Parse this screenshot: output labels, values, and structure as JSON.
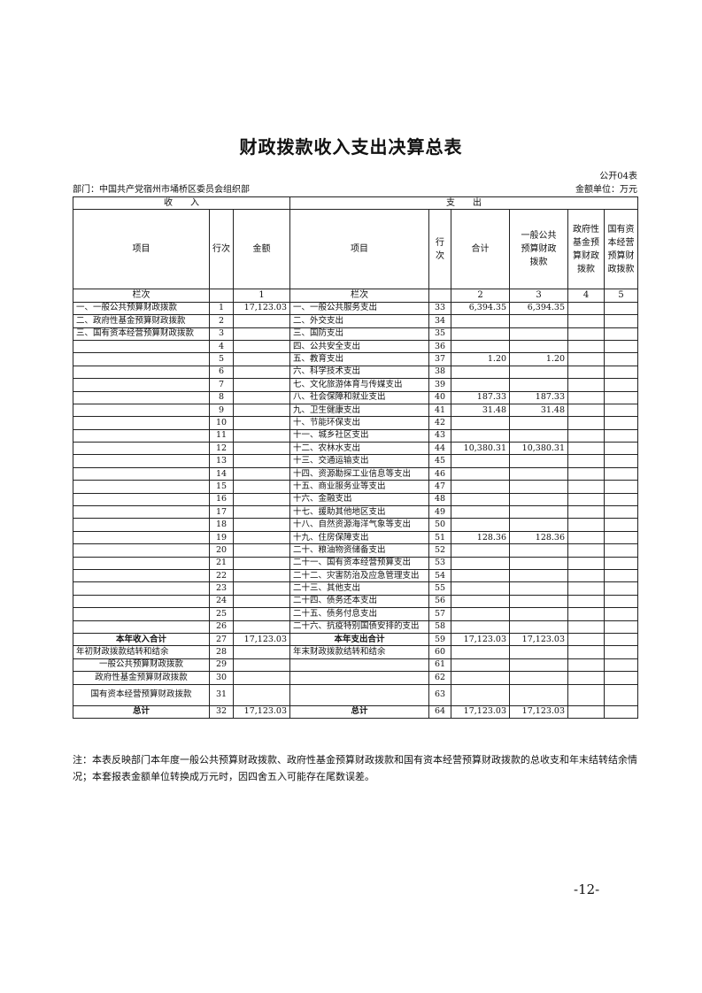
{
  "title": "财政拨款收入支出决算总表",
  "form_no": "公开04表",
  "department": "部门：中国共产党宿州市埇桥区委员会组织部",
  "unit": "金额单位：万元",
  "header": {
    "income": "收　　入",
    "expense": "支　　出",
    "item": "项目",
    "row_no": "行次",
    "amount": "金额",
    "exp_item": "项目",
    "exp_row_no": "行次",
    "total": "合计",
    "general": "一般公共预算财政拨款",
    "gov_fund": "政府性基金预算财政拨款",
    "soe": "国有资本经营预算财政拨款",
    "col_label": "栏次",
    "col_1": "1",
    "exp_col_label": "栏次",
    "col_2": "2",
    "col_3": "3",
    "col_4": "4",
    "col_5": "5"
  },
  "rows": [
    {
      "inc_item": "一、一般公共预算财政拨款",
      "inc_no": "1",
      "inc_amt": "17,123.03",
      "exp_item": "一、一般公共服务支出",
      "exp_no": "33",
      "total": "6,394.35",
      "general": "6,394.35",
      "gov": "",
      "soe": ""
    },
    {
      "inc_item": "二、政府性基金预算财政拨款",
      "inc_no": "2",
      "inc_amt": "",
      "exp_item": "二、外交支出",
      "exp_no": "34",
      "total": "",
      "general": "",
      "gov": "",
      "soe": ""
    },
    {
      "inc_item": "三、国有资本经营预算财政拨款",
      "inc_no": "3",
      "inc_amt": "",
      "exp_item": "三、国防支出",
      "exp_no": "35",
      "total": "",
      "general": "",
      "gov": "",
      "soe": ""
    },
    {
      "inc_item": "",
      "inc_no": "4",
      "inc_amt": "",
      "exp_item": "四、公共安全支出",
      "exp_no": "36",
      "total": "",
      "general": "",
      "gov": "",
      "soe": ""
    },
    {
      "inc_item": "",
      "inc_no": "5",
      "inc_amt": "",
      "exp_item": "五、教育支出",
      "exp_no": "37",
      "total": "1.20",
      "general": "1.20",
      "gov": "",
      "soe": ""
    },
    {
      "inc_item": "",
      "inc_no": "6",
      "inc_amt": "",
      "exp_item": "六、科学技术支出",
      "exp_no": "38",
      "total": "",
      "general": "",
      "gov": "",
      "soe": ""
    },
    {
      "inc_item": "",
      "inc_no": "7",
      "inc_amt": "",
      "exp_item": "七、文化旅游体育与传媒支出",
      "exp_no": "39",
      "total": "",
      "general": "",
      "gov": "",
      "soe": ""
    },
    {
      "inc_item": "",
      "inc_no": "8",
      "inc_amt": "",
      "exp_item": "八、社会保障和就业支出",
      "exp_no": "40",
      "total": "187.33",
      "general": "187.33",
      "gov": "",
      "soe": ""
    },
    {
      "inc_item": "",
      "inc_no": "9",
      "inc_amt": "",
      "exp_item": "九、卫生健康支出",
      "exp_no": "41",
      "total": "31.48",
      "general": "31.48",
      "gov": "",
      "soe": ""
    },
    {
      "inc_item": "",
      "inc_no": "10",
      "inc_amt": "",
      "exp_item": "十、节能环保支出",
      "exp_no": "42",
      "total": "",
      "general": "",
      "gov": "",
      "soe": ""
    },
    {
      "inc_item": "",
      "inc_no": "11",
      "inc_amt": "",
      "exp_item": "十一、城乡社区支出",
      "exp_no": "43",
      "total": "",
      "general": "",
      "gov": "",
      "soe": ""
    },
    {
      "inc_item": "",
      "inc_no": "12",
      "inc_amt": "",
      "exp_item": "十二、农林水支出",
      "exp_no": "44",
      "total": "10,380.31",
      "general": "10,380.31",
      "gov": "",
      "soe": ""
    },
    {
      "inc_item": "",
      "inc_no": "13",
      "inc_amt": "",
      "exp_item": "十三、交通运输支出",
      "exp_no": "45",
      "total": "",
      "general": "",
      "gov": "",
      "soe": ""
    },
    {
      "inc_item": "",
      "inc_no": "14",
      "inc_amt": "",
      "exp_item": "十四、资源勘探工业信息等支出",
      "exp_no": "46",
      "total": "",
      "general": "",
      "gov": "",
      "soe": ""
    },
    {
      "inc_item": "",
      "inc_no": "15",
      "inc_amt": "",
      "exp_item": "十五、商业服务业等支出",
      "exp_no": "47",
      "total": "",
      "general": "",
      "gov": "",
      "soe": ""
    },
    {
      "inc_item": "",
      "inc_no": "16",
      "inc_amt": "",
      "exp_item": "十六、金融支出",
      "exp_no": "48",
      "total": "",
      "general": "",
      "gov": "",
      "soe": ""
    },
    {
      "inc_item": "",
      "inc_no": "17",
      "inc_amt": "",
      "exp_item": "十七、援助其他地区支出",
      "exp_no": "49",
      "total": "",
      "general": "",
      "gov": "",
      "soe": ""
    },
    {
      "inc_item": "",
      "inc_no": "18",
      "inc_amt": "",
      "exp_item": "十八、自然资源海洋气象等支出",
      "exp_no": "50",
      "total": "",
      "general": "",
      "gov": "",
      "soe": ""
    },
    {
      "inc_item": "",
      "inc_no": "19",
      "inc_amt": "",
      "exp_item": "十九、住房保障支出",
      "exp_no": "51",
      "total": "128.36",
      "general": "128.36",
      "gov": "",
      "soe": ""
    },
    {
      "inc_item": "",
      "inc_no": "20",
      "inc_amt": "",
      "exp_item": "二十、粮油物资储备支出",
      "exp_no": "52",
      "total": "",
      "general": "",
      "gov": "",
      "soe": ""
    },
    {
      "inc_item": "",
      "inc_no": "21",
      "inc_amt": "",
      "exp_item": "二十一、国有资本经营预算支出",
      "exp_no": "53",
      "total": "",
      "general": "",
      "gov": "",
      "soe": ""
    },
    {
      "inc_item": "",
      "inc_no": "22",
      "inc_amt": "",
      "exp_item": "二十二、灾害防治及应急管理支出",
      "exp_no": "54",
      "total": "",
      "general": "",
      "gov": "",
      "soe": ""
    },
    {
      "inc_item": "",
      "inc_no": "23",
      "inc_amt": "",
      "exp_item": "二十三、其他支出",
      "exp_no": "55",
      "total": "",
      "general": "",
      "gov": "",
      "soe": ""
    },
    {
      "inc_item": "",
      "inc_no": "24",
      "inc_amt": "",
      "exp_item": "二十四、债务还本支出",
      "exp_no": "56",
      "total": "",
      "general": "",
      "gov": "",
      "soe": ""
    },
    {
      "inc_item": "",
      "inc_no": "25",
      "inc_amt": "",
      "exp_item": "二十五、债务付息支出",
      "exp_no": "57",
      "total": "",
      "general": "",
      "gov": "",
      "soe": ""
    },
    {
      "inc_item": "",
      "inc_no": "26",
      "inc_amt": "",
      "exp_item": "二十六、抗疫特别国债安排的支出",
      "exp_no": "58",
      "total": "",
      "general": "",
      "gov": "",
      "soe": ""
    },
    {
      "inc_item": "本年收入合计",
      "inc_no": "27",
      "inc_amt": "17,123.03",
      "exp_item": "本年支出合计",
      "exp_no": "59",
      "total": "17,123.03",
      "general": "17,123.03",
      "gov": "",
      "soe": "",
      "emphasis": true
    },
    {
      "inc_item": "年初财政拨款结转和结余",
      "inc_no": "28",
      "inc_amt": "",
      "exp_item": "年末财政拨款结转和结余",
      "exp_no": "60",
      "total": "",
      "general": "",
      "gov": "",
      "soe": ""
    },
    {
      "inc_item": "一般公共预算财政拨款",
      "inc_no": "29",
      "inc_amt": "",
      "exp_item": "",
      "exp_no": "61",
      "total": "",
      "general": "",
      "gov": "",
      "soe": "",
      "sub": true
    },
    {
      "inc_item": "政府性基金预算财政拨款",
      "inc_no": "30",
      "inc_amt": "",
      "exp_item": "",
      "exp_no": "62",
      "total": "",
      "general": "",
      "gov": "",
      "soe": "",
      "sub": true
    },
    {
      "inc_item": "国有资本经营预算财政拨款",
      "inc_no": "31",
      "inc_amt": "",
      "exp_item": "",
      "exp_no": "63",
      "total": "",
      "general": "",
      "gov": "",
      "soe": "",
      "sub": true,
      "tall": true
    },
    {
      "inc_item": "总计",
      "inc_no": "32",
      "inc_amt": "17,123.03",
      "exp_item": "总计",
      "exp_no": "64",
      "total": "17,123.03",
      "general": "17,123.03",
      "gov": "",
      "soe": "",
      "emphasis": true
    }
  ],
  "note": "注：本表反映部门本年度一般公共预算财政拨款、政府性基金预算财政拨款和国有资本经营预算财政拨款的总收支和年末结转结余情况；本套报表金额单位转换成万元时，因四舍五入可能存在尾数误差。",
  "page_number": "-12-"
}
